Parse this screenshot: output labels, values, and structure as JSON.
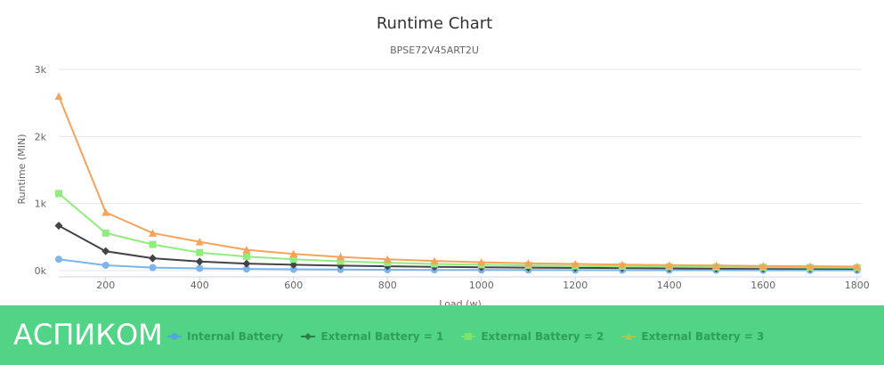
{
  "chart_data": {
    "type": "line",
    "title": "Runtime Chart",
    "subtitle": "BPSE72V45ART2U",
    "xlabel": "Load (w)",
    "ylabel": "Runtime (MIN)",
    "x": [
      100,
      200,
      300,
      400,
      500,
      600,
      700,
      800,
      900,
      1000,
      1100,
      1200,
      1300,
      1400,
      1500,
      1600,
      1700,
      1800
    ],
    "xlim": [
      100,
      1810
    ],
    "ylim": [
      0,
      3000
    ],
    "x_ticks": [
      "200",
      "400",
      "600",
      "800",
      "1000",
      "1200",
      "1400",
      "1600",
      "1800"
    ],
    "x_tick_values": [
      200,
      400,
      600,
      800,
      1000,
      1200,
      1400,
      1600,
      1800
    ],
    "y_ticks": [
      "0k",
      "1k",
      "2k",
      "3k"
    ],
    "y_tick_values": [
      0,
      1000,
      2000,
      3000
    ],
    "grid": true,
    "legend_position": "bottom",
    "series": [
      {
        "name": "Internal Battery",
        "color": "#7cb5ec",
        "marker": "circle",
        "values": [
          170,
          80,
          45,
          33,
          25,
          20,
          16,
          13,
          11,
          10,
          9,
          8,
          7,
          6,
          6,
          5,
          5,
          5
        ]
      },
      {
        "name": "External Battery = 1",
        "color": "#434348",
        "marker": "diamond",
        "values": [
          670,
          290,
          185,
          135,
          105,
          88,
          75,
          65,
          57,
          50,
          45,
          41,
          38,
          35,
          32,
          30,
          28,
          26
        ]
      },
      {
        "name": "External Battery = 2",
        "color": "#90ed7d",
        "marker": "square",
        "values": [
          1150,
          560,
          390,
          270,
          210,
          170,
          140,
          118,
          100,
          88,
          78,
          70,
          64,
          58,
          54,
          50,
          46,
          43
        ]
      },
      {
        "name": "External Battery = 3",
        "color": "#f7a35c",
        "marker": "triangle",
        "values": [
          2600,
          870,
          560,
          430,
          310,
          250,
          205,
          170,
          145,
          125,
          110,
          100,
          90,
          82,
          76,
          70,
          65,
          61
        ]
      }
    ]
  },
  "brand": {
    "text": "АСПИКОМ"
  }
}
